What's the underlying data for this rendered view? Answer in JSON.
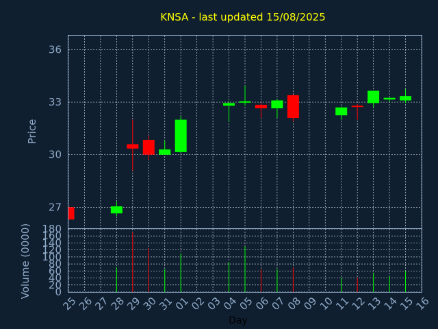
{
  "chart_data": {
    "type": "candlestick",
    "title": "KNSA - last updated 15/08/2025",
    "xlabel": "Day",
    "price_panel": {
      "ylabel": "Price",
      "ylim": [
        25.8,
        36.8
      ],
      "yticks": [
        27,
        30,
        33,
        36
      ],
      "grid": true
    },
    "volume_panel": {
      "ylabel": "Volume (0000)",
      "ylim": [
        0,
        180
      ],
      "yticks": [
        0,
        20,
        40,
        60,
        80,
        100,
        120,
        140,
        160,
        180
      ],
      "grid": true
    },
    "x_tick_labels": [
      "25",
      "26",
      "27",
      "28",
      "29",
      "30",
      "31",
      "01",
      "02",
      "03",
      "04",
      "05",
      "06",
      "07",
      "08",
      "09",
      "10",
      "11",
      "12",
      "13",
      "14",
      "15",
      "16"
    ],
    "colors": {
      "up": "#00ff00",
      "down": "#ff0000"
    },
    "candles": [
      {
        "x": 0,
        "open": 27.0,
        "high": 27.05,
        "low": 26.3,
        "close": 26.3,
        "volume": 0
      },
      {
        "x": 3,
        "open": 26.65,
        "high": 27.35,
        "low": 26.5,
        "close": 27.05,
        "volume": 70
      },
      {
        "x": 4,
        "open": 30.6,
        "high": 32.0,
        "low": 29.1,
        "close": 30.35,
        "volume": 170
      },
      {
        "x": 5,
        "open": 30.85,
        "high": 31.1,
        "low": 29.7,
        "close": 30.0,
        "volume": 125
      },
      {
        "x": 6,
        "open": 30.0,
        "high": 30.8,
        "low": 30.0,
        "close": 30.3,
        "volume": 65
      },
      {
        "x": 7,
        "open": 30.15,
        "high": 32.2,
        "low": 30.1,
        "close": 32.0,
        "volume": 110
      },
      {
        "x": 10,
        "open": 32.8,
        "high": 33.05,
        "low": 31.9,
        "close": 32.95,
        "volume": 85
      },
      {
        "x": 11,
        "open": 33.0,
        "high": 33.95,
        "low": 32.8,
        "close": 33.05,
        "volume": 130
      },
      {
        "x": 12,
        "open": 32.85,
        "high": 32.95,
        "low": 32.1,
        "close": 32.65,
        "volume": 65
      },
      {
        "x": 13,
        "open": 32.65,
        "high": 33.2,
        "low": 32.1,
        "close": 33.1,
        "volume": 65
      },
      {
        "x": 14,
        "open": 33.4,
        "high": 33.45,
        "low": 31.9,
        "close": 32.1,
        "volume": 70
      },
      {
        "x": 17,
        "open": 32.25,
        "high": 32.75,
        "low": 32.0,
        "close": 32.7,
        "volume": 40
      },
      {
        "x": 18,
        "open": 32.8,
        "high": 32.9,
        "low": 32.0,
        "close": 32.75,
        "volume": 40
      },
      {
        "x": 19,
        "open": 32.95,
        "high": 33.65,
        "low": 32.7,
        "close": 33.65,
        "volume": 55
      },
      {
        "x": 20,
        "open": 33.15,
        "high": 33.25,
        "low": 33.0,
        "close": 33.25,
        "volume": 45
      },
      {
        "x": 21,
        "open": 33.1,
        "high": 33.75,
        "low": 32.95,
        "close": 33.35,
        "volume": 60
      }
    ]
  }
}
